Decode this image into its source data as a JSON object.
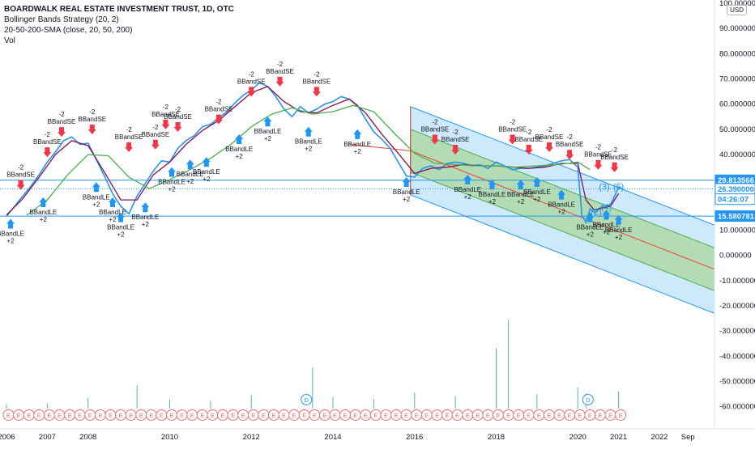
{
  "legend": {
    "title": "BOARDWALK REAL ESTATE INVESTMENT TRUST, 1D, OTC",
    "ind1": "Bollinger Bands Strategy (20, 2)",
    "ind2": "20-50-200-SMA (close, 20, 50, 200)",
    "ind3": "Vol"
  },
  "currency": "USD",
  "chart_data": {
    "type": "line",
    "title": "BOARDWALK REAL ESTATE INVESTMENT TRUST, 1D, OTC",
    "ylim": [
      -63,
      100
    ],
    "xlim": [
      2006.0,
      2023.35
    ],
    "grid": false,
    "y_ticks": [
      {
        "v": 100,
        "label": "100.000000"
      },
      {
        "v": 90,
        "label": "90.000000"
      },
      {
        "v": 80,
        "label": "80.000000"
      },
      {
        "v": 70,
        "label": "70.000000"
      },
      {
        "v": 60,
        "label": "60.000000"
      },
      {
        "v": 50,
        "label": "50.000000"
      },
      {
        "v": 40,
        "label": "40.000000"
      },
      {
        "v": 30,
        "label": "30.000000"
      },
      {
        "v": 10,
        "label": "10.000000"
      },
      {
        "v": 0,
        "label": "0.000000"
      },
      {
        "v": -10,
        "label": "-10.000000"
      },
      {
        "v": -20,
        "label": "-20.000000"
      },
      {
        "v": -30,
        "label": "-30.000000"
      },
      {
        "v": -40,
        "label": "-40.000000"
      },
      {
        "v": -50,
        "label": "-50.000000"
      },
      {
        "v": -60,
        "label": "-60.000000"
      }
    ],
    "x_ticks": [
      {
        "v": 2006.0,
        "label": "2006"
      },
      {
        "v": 2007.0,
        "label": "2007"
      },
      {
        "v": 2008.0,
        "label": "2008"
      },
      {
        "v": 2010.0,
        "label": "2010"
      },
      {
        "v": 2012.0,
        "label": "2012"
      },
      {
        "v": 2014.0,
        "label": "2014"
      },
      {
        "v": 2016.0,
        "label": "2016"
      },
      {
        "v": 2018.0,
        "label": "2018"
      },
      {
        "v": 2020.0,
        "label": "2020"
      },
      {
        "v": 2021.0,
        "label": "2021"
      },
      {
        "v": 2022.0,
        "label": "2022"
      },
      {
        "v": 2022.7,
        "label": "Sep"
      }
    ],
    "price_tags": [
      {
        "v": 29.813566,
        "label": "29.813566",
        "bg": "#2196f3",
        "fg": "#ffffff"
      },
      {
        "v": 26.39,
        "label": "26.390000",
        "bg": "#ffffff",
        "fg": "#2196f3"
      },
      {
        "v": 22.3,
        "label": "04:26:07",
        "bg": "#ffffff",
        "fg": "#2196f3"
      },
      {
        "v": 15.580781,
        "label": "15.580781",
        "bg": "#2196f3",
        "fg": "#ffffff"
      }
    ],
    "hlines": [
      29.813566,
      15.580781
    ],
    "series": [
      {
        "name": "Price",
        "color": "#2196f3",
        "x": [
          2006.0,
          2006.2,
          2006.4,
          2006.6,
          2006.8,
          2007.0,
          2007.2,
          2007.4,
          2007.6,
          2007.8,
          2008.0,
          2008.2,
          2008.4,
          2008.6,
          2008.8,
          2009.0,
          2009.2,
          2009.4,
          2009.6,
          2009.8,
          2010.0,
          2010.2,
          2010.4,
          2010.6,
          2010.8,
          2011.0,
          2011.2,
          2011.4,
          2011.6,
          2011.8,
          2012.0,
          2012.2,
          2012.4,
          2012.6,
          2012.8,
          2013.0,
          2013.2,
          2013.4,
          2013.6,
          2013.8,
          2014.0,
          2014.2,
          2014.4,
          2014.6,
          2014.8,
          2015.0,
          2015.2,
          2015.4,
          2015.6,
          2015.8,
          2016.0,
          2016.2,
          2016.4,
          2016.6,
          2016.8,
          2017.0,
          2017.2,
          2017.4,
          2017.6,
          2017.8,
          2018.0,
          2018.2,
          2018.4,
          2018.6,
          2018.8,
          2019.0,
          2019.2,
          2019.4,
          2019.6,
          2019.8,
          2020.0,
          2020.1,
          2020.2,
          2020.3,
          2020.4,
          2020.6,
          2020.8,
          2021.0,
          2021.1
        ],
        "values": [
          15.5,
          19.5,
          23.5,
          27.5,
          32,
          37,
          41,
          45.5,
          47,
          44,
          44.5,
          38,
          31.5,
          24.5,
          19.5,
          16.5,
          23.5,
          28.5,
          33.5,
          37.5,
          37,
          42.5,
          45.5,
          47.5,
          51,
          52,
          54.5,
          57,
          60.5,
          63.5,
          65.5,
          68.5,
          67,
          63,
          58,
          55,
          59,
          56.5,
          58,
          60,
          61,
          63,
          62,
          59.5,
          54,
          49,
          46,
          42.5,
          37,
          31.5,
          31,
          34.5,
          35.5,
          34,
          36.5,
          37,
          36.5,
          35.5,
          36,
          34.5,
          37,
          35.5,
          34,
          34.5,
          34.5,
          35,
          35.5,
          36.5,
          37.5,
          38,
          35,
          16,
          13,
          18.5,
          17,
          19.5,
          20,
          27,
          26.4
        ]
      },
      {
        "name": "SMA 20",
        "color": "#880e4f",
        "x": [
          2006.0,
          2006.4,
          2006.8,
          2007.2,
          2007.6,
          2008.0,
          2008.4,
          2008.8,
          2009.2,
          2009.6,
          2010.0,
          2010.4,
          2010.8,
          2011.2,
          2011.6,
          2012.0,
          2012.4,
          2012.8,
          2013.2,
          2013.6,
          2014.0,
          2014.4,
          2014.8,
          2015.2,
          2015.6,
          2016.0,
          2016.4,
          2016.8,
          2017.2,
          2017.6,
          2018.0,
          2018.4,
          2018.8,
          2019.2,
          2019.6,
          2020.0,
          2020.2,
          2020.4,
          2020.8,
          2021.0
        ],
        "values": [
          16,
          22.5,
          31,
          40,
          45.5,
          43.5,
          33,
          22,
          22,
          32,
          37,
          44,
          49.5,
          53.5,
          59,
          64.5,
          67,
          61,
          57,
          56.5,
          59.5,
          62,
          56.5,
          48,
          40.5,
          32.5,
          34.5,
          35,
          36,
          35.5,
          35.5,
          35,
          34.5,
          35,
          36.5,
          36.5,
          22,
          18,
          19.5,
          24.5
        ]
      },
      {
        "name": "SMA 200",
        "color": "#4caf50",
        "x": [
          2006.5,
          2007.0,
          2007.5,
          2008.0,
          2008.5,
          2009.0,
          2009.5,
          2010.0,
          2010.5,
          2011.0,
          2011.5,
          2012.0,
          2012.5,
          2013.0,
          2013.5,
          2014.0,
          2014.5,
          2015.0,
          2015.5,
          2016.0,
          2016.5,
          2017.0,
          2017.5,
          2018.0,
          2018.5,
          2019.0,
          2019.5,
          2020.0,
          2020.3
        ],
        "values": [
          16,
          22,
          32,
          40,
          39.5,
          31,
          26.5,
          30,
          34,
          38.5,
          44,
          51,
          56,
          58.5,
          56,
          57,
          59.5,
          57,
          48.5,
          40.5,
          36.5,
          36,
          35.5,
          35.5,
          35,
          35.5,
          36,
          37,
          34
        ]
      }
    ],
    "regression_channel": {
      "x_start": 2015.9,
      "x_end": 2023.35,
      "mid_start": 41.5,
      "mid_end": -5.5,
      "inner_offset": 8.5,
      "outer_offset": 17.5
    },
    "trend_line": {
      "x_start": 2014.4,
      "y_start": 44,
      "x_end": 2015.9,
      "y_end": 41.5
    },
    "signals": [
      {
        "x": 2006.1,
        "type": "le",
        "v": 14.5
      },
      {
        "x": 2006.35,
        "type": "se",
        "v": 26
      },
      {
        "x": 2007.0,
        "type": "se",
        "v": 39
      },
      {
        "x": 2006.9,
        "type": "le",
        "v": 23
      },
      {
        "x": 2007.35,
        "type": "se",
        "v": 47
      },
      {
        "x": 2008.1,
        "type": "se",
        "v": 48
      },
      {
        "x": 2008.2,
        "type": "le",
        "v": 29
      },
      {
        "x": 2008.6,
        "type": "le",
        "v": 23
      },
      {
        "x": 2008.8,
        "type": "le",
        "v": 17
      },
      {
        "x": 2009.0,
        "type": "se",
        "v": 41
      },
      {
        "x": 2009.4,
        "type": "le",
        "v": 21
      },
      {
        "x": 2009.65,
        "type": "se",
        "v": 42
      },
      {
        "x": 2009.9,
        "type": "se",
        "v": 50
      },
      {
        "x": 2010.2,
        "type": "se",
        "v": 49
      },
      {
        "x": 2010.05,
        "type": "le",
        "v": 35
      },
      {
        "x": 2010.5,
        "type": "le",
        "v": 38
      },
      {
        "x": 2010.9,
        "type": "le",
        "v": 39
      },
      {
        "x": 2011.2,
        "type": "se",
        "v": 52
      },
      {
        "x": 2011.7,
        "type": "le",
        "v": 48
      },
      {
        "x": 2012.0,
        "type": "se",
        "v": 63
      },
      {
        "x": 2012.4,
        "type": "le",
        "v": 55
      },
      {
        "x": 2012.7,
        "type": "se",
        "v": 67
      },
      {
        "x": 2013.4,
        "type": "le",
        "v": 51
      },
      {
        "x": 2013.6,
        "type": "se",
        "v": 63
      },
      {
        "x": 2014.6,
        "type": "le",
        "v": 50
      },
      {
        "x": 2015.8,
        "type": "le",
        "v": 31
      },
      {
        "x": 2016.5,
        "type": "se",
        "v": 44
      },
      {
        "x": 2017.0,
        "type": "se",
        "v": 40
      },
      {
        "x": 2017.3,
        "type": "le",
        "v": 32
      },
      {
        "x": 2017.9,
        "type": "le",
        "v": 30
      },
      {
        "x": 2018.4,
        "type": "se",
        "v": 44
      },
      {
        "x": 2018.8,
        "type": "se",
        "v": 40
      },
      {
        "x": 2018.6,
        "type": "le",
        "v": 30
      },
      {
        "x": 2019.3,
        "type": "se",
        "v": 41
      },
      {
        "x": 2019.0,
        "type": "le",
        "v": 31
      },
      {
        "x": 2019.8,
        "type": "se",
        "v": 38
      },
      {
        "x": 2019.6,
        "type": "le",
        "v": 26
      },
      {
        "x": 2020.3,
        "type": "le",
        "v": 17
      },
      {
        "x": 2020.5,
        "type": "se",
        "v": 34
      },
      {
        "x": 2020.9,
        "type": "se",
        "v": 33
      },
      {
        "x": 2020.7,
        "type": "le",
        "v": 18
      },
      {
        "x": 2021.0,
        "type": "le",
        "v": 16
      }
    ],
    "signal_labels": {
      "se": "BBandSE",
      "le": "BBandLE",
      "se_qty": "-2",
      "le_qty": "+2"
    },
    "elliott_labels": [
      {
        "x": 2020.45,
        "v": 16,
        "label": "(2)"
      },
      {
        "x": 2020.7,
        "v": 18,
        "label": "(4)"
      },
      {
        "x": 2020.65,
        "v": 26,
        "label": "(3)"
      },
      {
        "x": 2021.0,
        "v": 26,
        "label": "(5)"
      }
    ],
    "volume": {
      "x": [
        2006.0,
        2007.0,
        2008.0,
        2009.2,
        2010.0,
        2011.0,
        2012.0,
        2013.5,
        2014.0,
        2015.0,
        2016.0,
        2017.0,
        2018.0,
        2018.3,
        2019.0,
        2020.0,
        2020.2,
        2021.0
      ],
      "v": [
        0.5,
        0.6,
        1.2,
        2.6,
        1.0,
        0.9,
        1.5,
        4.6,
        1.3,
        1.1,
        1.8,
        1.4,
        6.8,
        10.0,
        1.6,
        2.4,
        1.7,
        1.9
      ]
    },
    "events": {
      "earnings_label": "E",
      "dividend_label": "D",
      "earnings_x": [
        2006.05,
        2006.3,
        2006.55,
        2006.8,
        2007.05,
        2007.3,
        2007.55,
        2007.8,
        2008.05,
        2008.3,
        2008.55,
        2008.8,
        2009.05,
        2009.3,
        2009.55,
        2009.8,
        2010.05,
        2010.3,
        2010.55,
        2010.8,
        2011.05,
        2011.3,
        2011.55,
        2011.8,
        2012.05,
        2012.3,
        2012.55,
        2012.8,
        2013.05,
        2013.3,
        2013.55,
        2013.8,
        2014.05,
        2014.3,
        2014.55,
        2014.8,
        2015.05,
        2015.3,
        2015.55,
        2015.8,
        2016.05,
        2016.3,
        2016.55,
        2016.8,
        2017.05,
        2017.3,
        2017.55,
        2017.8,
        2018.05,
        2018.3,
        2018.55,
        2018.8,
        2019.05,
        2019.3,
        2019.55,
        2019.8,
        2020.05,
        2020.3,
        2020.55,
        2020.8,
        2021.05
      ],
      "dividend_x": [
        2013.35,
        2020.25
      ]
    }
  }
}
